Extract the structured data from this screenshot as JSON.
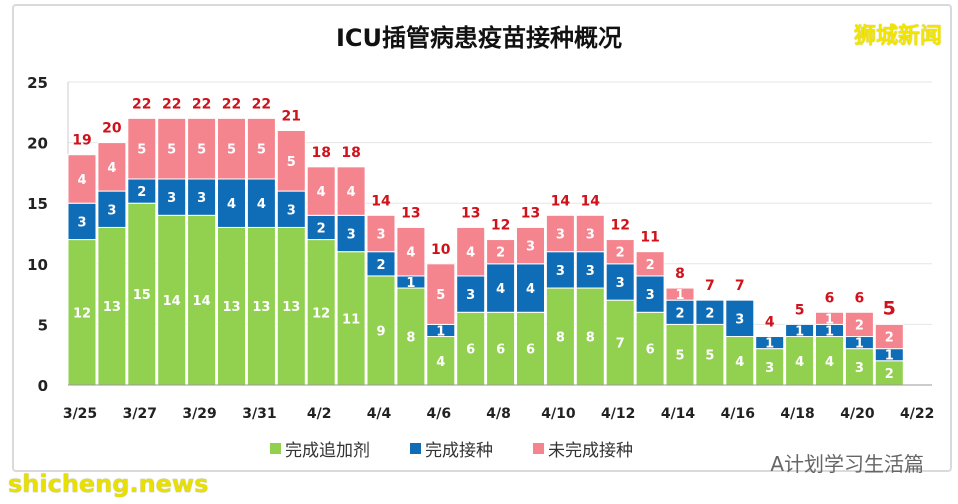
{
  "watermarks": {
    "top_right": "狮城新闻",
    "bottom_right": "A计划学习生活篇",
    "bottom_left": "shicheng.news"
  },
  "chart_data": {
    "type": "bar",
    "stacked": true,
    "title": "ICU插管病患疫苗接种概况",
    "categories": [
      "3/25",
      "3/26",
      "3/27",
      "3/28",
      "3/29",
      "3/30",
      "3/31",
      "4/1",
      "4/2",
      "4/3",
      "4/4",
      "4/5",
      "4/6",
      "4/7",
      "4/8",
      "4/9",
      "4/10",
      "4/11",
      "4/12",
      "4/13",
      "4/14",
      "4/15",
      "4/16",
      "4/17",
      "4/18",
      "4/19",
      "4/20",
      "4/21"
    ],
    "x_tick_labels": [
      "3/25",
      "3/27",
      "3/29",
      "3/31",
      "4/2",
      "4/4",
      "4/6",
      "4/8",
      "4/10",
      "4/12",
      "4/14",
      "4/16",
      "4/18",
      "4/20",
      "4/22"
    ],
    "series": [
      {
        "name": "完成追加剂",
        "color": "#92d050",
        "values": [
          12,
          13,
          15,
          14,
          14,
          13,
          13,
          13,
          12,
          11,
          9,
          8,
          4,
          6,
          6,
          6,
          8,
          8,
          7,
          6,
          5,
          5,
          4,
          3,
          4,
          4,
          3,
          2
        ]
      },
      {
        "name": "完成接种",
        "color": "#0f6db8",
        "values": [
          3,
          3,
          2,
          3,
          3,
          4,
          4,
          3,
          2,
          3,
          2,
          1,
          1,
          3,
          4,
          4,
          3,
          3,
          3,
          3,
          2,
          2,
          3,
          1,
          1,
          1,
          1,
          1
        ]
      },
      {
        "name": "未完成接种",
        "color": "#f4858e",
        "values": [
          4,
          4,
          5,
          5,
          5,
          5,
          5,
          5,
          4,
          4,
          3,
          4,
          5,
          4,
          2,
          3,
          3,
          3,
          2,
          2,
          1,
          0,
          0,
          0,
          0,
          1,
          2,
          2
        ]
      }
    ],
    "totals": [
      19,
      20,
      22,
      22,
      22,
      22,
      22,
      21,
      18,
      18,
      14,
      13,
      10,
      13,
      12,
      13,
      14,
      14,
      12,
      11,
      8,
      7,
      7,
      4,
      5,
      6,
      6,
      5
    ],
    "ylim": [
      0,
      25
    ],
    "y_ticks": [
      0,
      5,
      10,
      15,
      20,
      25
    ],
    "grid": true,
    "legend": "bottom",
    "total_label_color": "#d0121b"
  }
}
